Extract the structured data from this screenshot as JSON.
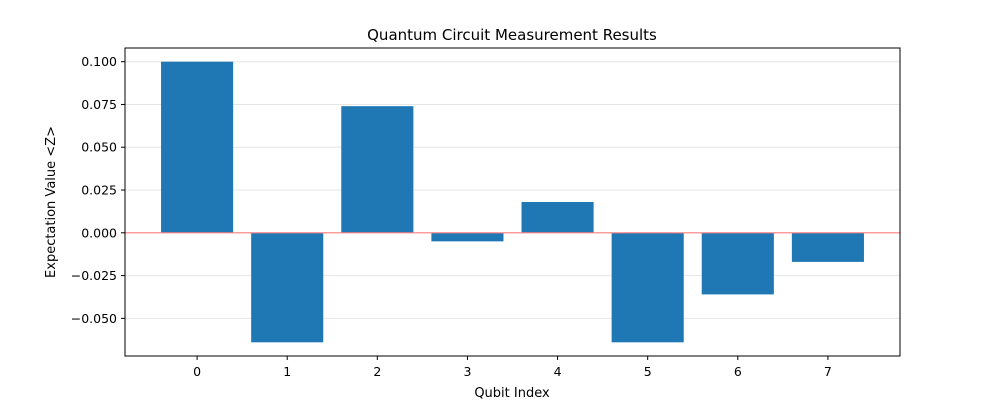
{
  "chart_data": {
    "type": "bar",
    "title": "Quantum Circuit Measurement Results",
    "xlabel": "Qubit Index",
    "ylabel": "Expectation Value <Z>",
    "categories": [
      "0",
      "1",
      "2",
      "3",
      "4",
      "5",
      "6",
      "7"
    ],
    "values": [
      0.1,
      -0.064,
      0.074,
      -0.005,
      0.018,
      -0.064,
      -0.036,
      -0.017
    ],
    "ylim": [
      -0.072,
      0.108
    ],
    "yticks": [
      -0.05,
      -0.025,
      0.0,
      0.025,
      0.05,
      0.075,
      0.1
    ],
    "ytick_labels": [
      "−0.050",
      "−0.025",
      "0.000",
      "0.025",
      "0.050",
      "0.075",
      "0.100"
    ],
    "grid": "horizontal",
    "reference_line": {
      "y": 0,
      "color": "#ff8080"
    },
    "colors": {
      "bar": "#1f77b4",
      "grid": "#e6e6e6",
      "reference_line": "#ff8080"
    }
  }
}
